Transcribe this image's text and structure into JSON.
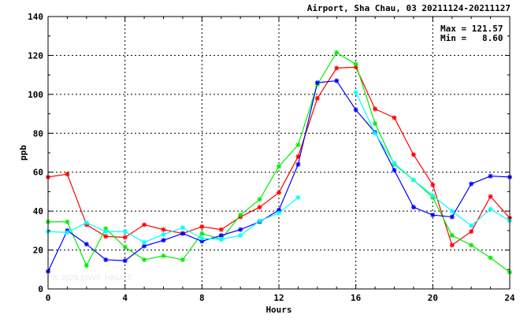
{
  "chart_data": {
    "type": "line",
    "title": "Airport, Sha Chau, 03 20211124-20211127",
    "xlabel": "Hours",
    "ylabel": "ppb",
    "xlim": [
      0,
      24
    ],
    "ylim": [
      0,
      140
    ],
    "xticks": [
      0,
      4,
      8,
      12,
      16,
      20,
      24
    ],
    "yticks": [
      0,
      20,
      40,
      60,
      80,
      100,
      120,
      140
    ],
    "grid": true,
    "stats": {
      "max_label": "Max = 121.57",
      "min_label": "Min =   8.60"
    },
    "watermark": "© 2023 ENVF, HKUST",
    "x": [
      0,
      1,
      2,
      3,
      4,
      5,
      6,
      7,
      8,
      9,
      10,
      11,
      12,
      13,
      14,
      15,
      16,
      17,
      18,
      19,
      20,
      21,
      22,
      23,
      24
    ],
    "series": [
      {
        "color": "#ff0000",
        "values": [
          57.5,
          59,
          33,
          27,
          26.5,
          33,
          30.5,
          28.5,
          32,
          30.5,
          37,
          42,
          49.5,
          68,
          98,
          113.5,
          114,
          92.5,
          88,
          69,
          53.5,
          22.5,
          29.5,
          47.5,
          36.5
        ]
      },
      {
        "color": "#00ee00",
        "values": [
          34.5,
          34.5,
          12,
          31,
          21.5,
          15,
          17,
          15,
          28.5,
          25.5,
          38,
          46,
          63,
          74,
          105,
          121.5,
          115.5,
          85,
          64,
          56,
          47,
          27.5,
          22.5,
          16,
          8.6
        ]
      },
      {
        "color": "#0000ff",
        "values": [
          9,
          30,
          23,
          15,
          14.5,
          22,
          25,
          28.5,
          24.5,
          27.5,
          30.5,
          34.5,
          40.5,
          64,
          106,
          107,
          92,
          80.5,
          61,
          42,
          38,
          37,
          54,
          58,
          57.5
        ]
      },
      {
        "color": "#00ffff",
        "values": [
          29.5,
          29,
          34,
          29.5,
          29.5,
          24,
          28,
          31.5,
          26,
          25.5,
          27.5,
          35,
          39,
          47,
          null,
          null,
          101,
          80,
          64.5,
          56,
          48,
          40,
          32.5,
          41,
          35
        ]
      }
    ]
  }
}
